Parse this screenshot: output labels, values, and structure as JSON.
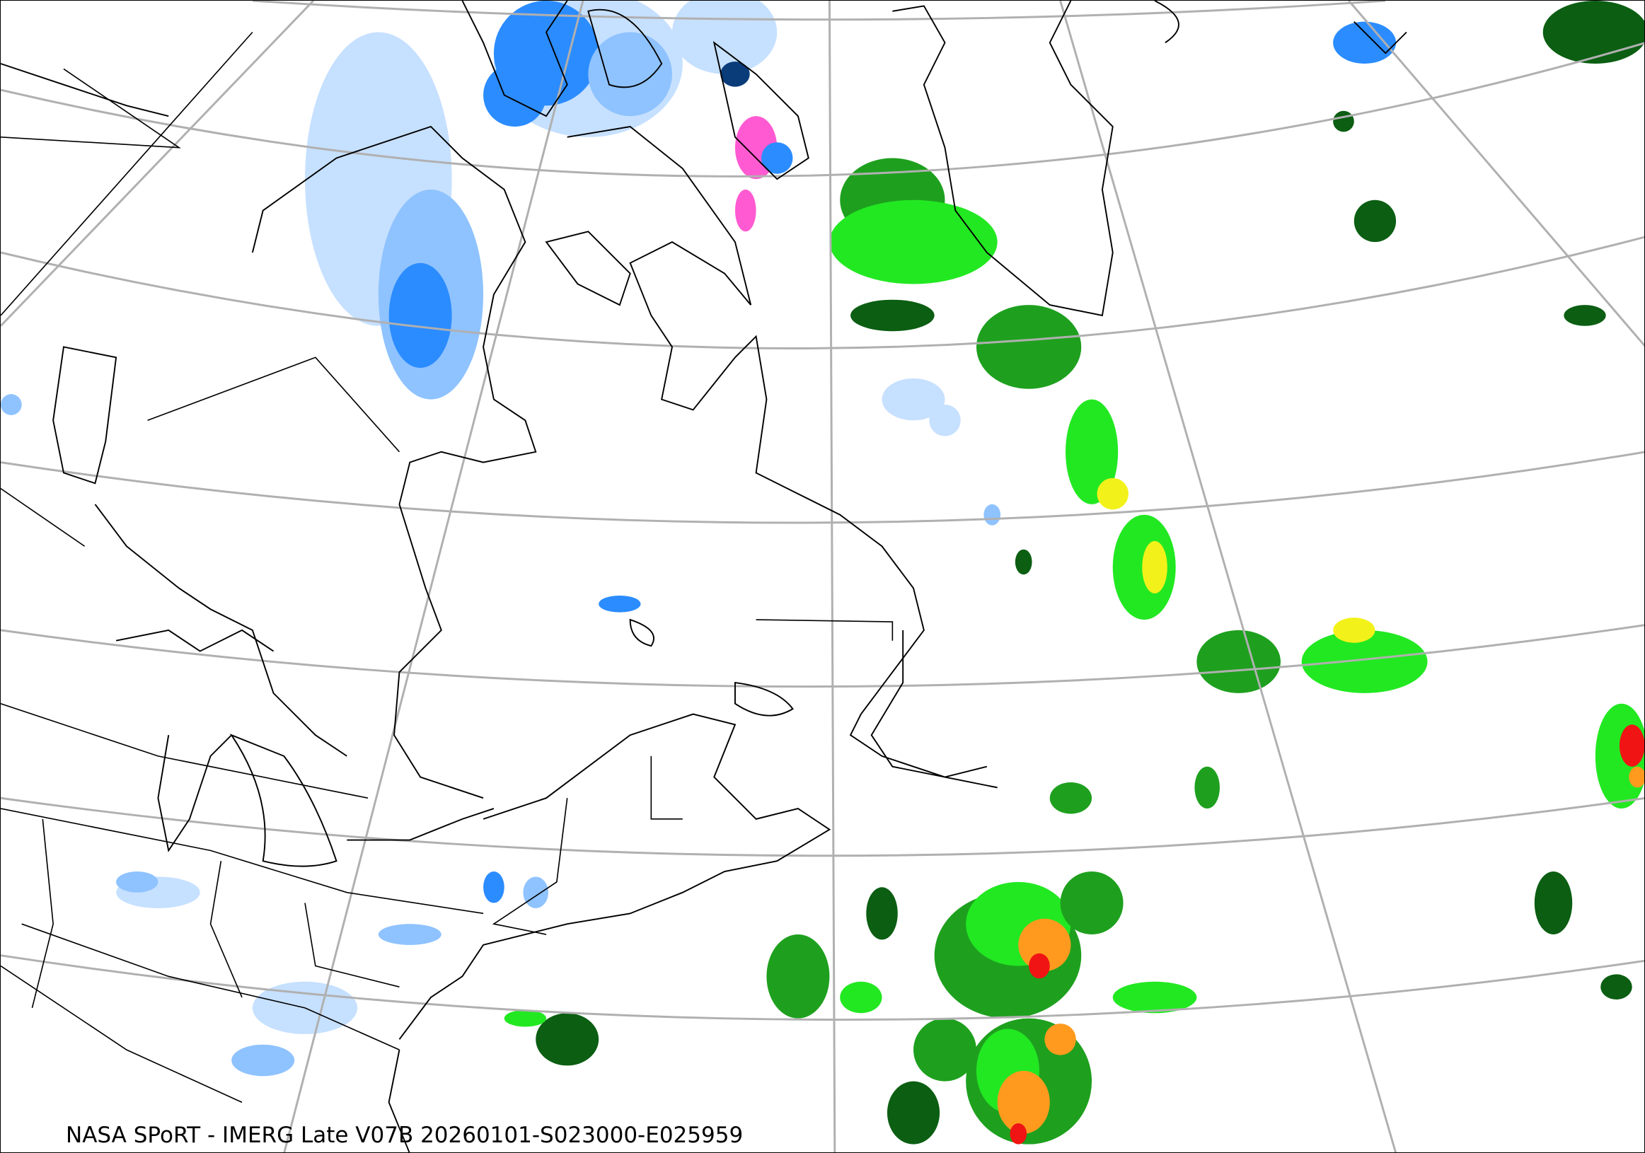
{
  "map": {
    "caption": "NASA SPoRT - IMERG Late V07B 20260101-S023000-E025959",
    "projection": "conic",
    "graticule_color": "#b0b0b0",
    "coastline_color": "#000000",
    "precip_colors": {
      "snow_light": "#c6e0ff",
      "snow_moderate": "#8fc3ff",
      "snow_heavy": "#2b8cff",
      "snow_very_heavy": "#0a3c7a",
      "mixed": "#ff5ad2",
      "rain_light": "#0b5e12",
      "rain_moderate": "#1ea01e",
      "rain_heavy": "#22e822",
      "rain_very_heavy": "#f2f21a",
      "rain_intense": "#ff9a1e",
      "rain_extreme": "#f01414"
    }
  }
}
